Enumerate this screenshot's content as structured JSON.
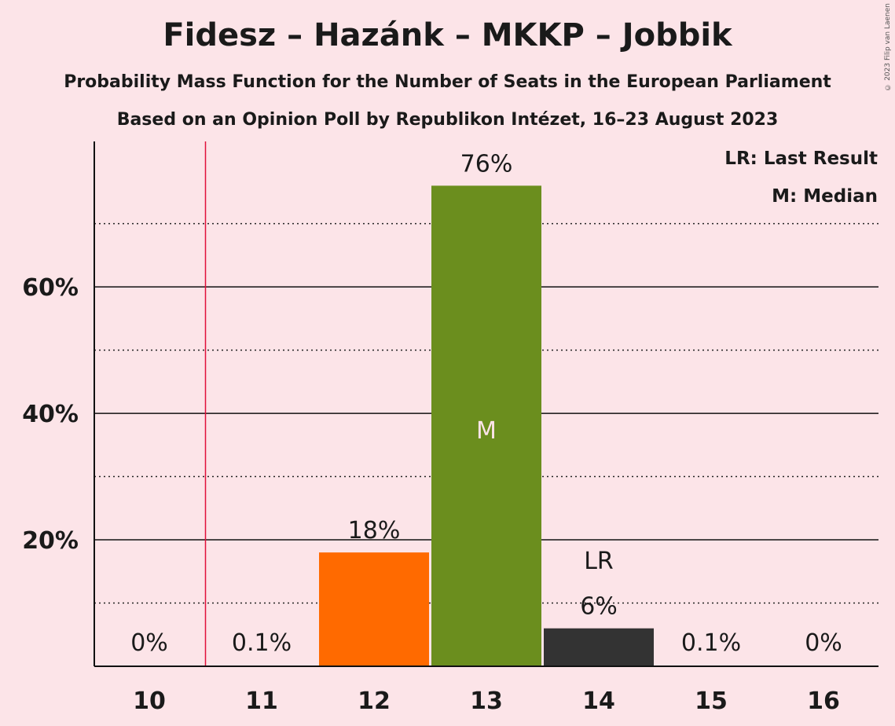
{
  "chart_data": {
    "type": "bar",
    "title": "Fidesz – Hazánk – MKKP – Jobbik",
    "subtitle_1": "Probability Mass Function for the Number of Seats in the European Parliament",
    "subtitle_2": "Based on an Opinion Poll by Republikon Intézet, 16–23 August 2023",
    "copyright": "© 2023 Filip van Laenen",
    "categories": [
      "10",
      "11",
      "12",
      "13",
      "14",
      "15",
      "16"
    ],
    "values": [
      0,
      0.1,
      18,
      76,
      6,
      0.1,
      0
    ],
    "value_labels": [
      "0%",
      "0.1%",
      "18%",
      "76%",
      "6%",
      "0.1%",
      "0%"
    ],
    "bar_colors": [
      "#fce4e8",
      "#fce4e8",
      "#ff6a00",
      "#6b8e1e",
      "#333333",
      "#fce4e8",
      "#fce4e8"
    ],
    "ylim": [
      0,
      83
    ],
    "yticks": [
      20,
      40,
      60
    ],
    "ytick_labels": [
      "20%",
      "40%",
      "60%"
    ],
    "minor_gridlines": [
      10,
      30,
      50,
      70
    ],
    "last_result_seat": 10.5,
    "last_result_marker": {
      "category": "14",
      "text": "LR"
    },
    "median_marker": {
      "category": "13",
      "text": "M"
    },
    "legend": [
      "LR: Last Result",
      "M: Median"
    ],
    "legend_position": "top-right",
    "last_result_line_color": "#e0103a"
  }
}
